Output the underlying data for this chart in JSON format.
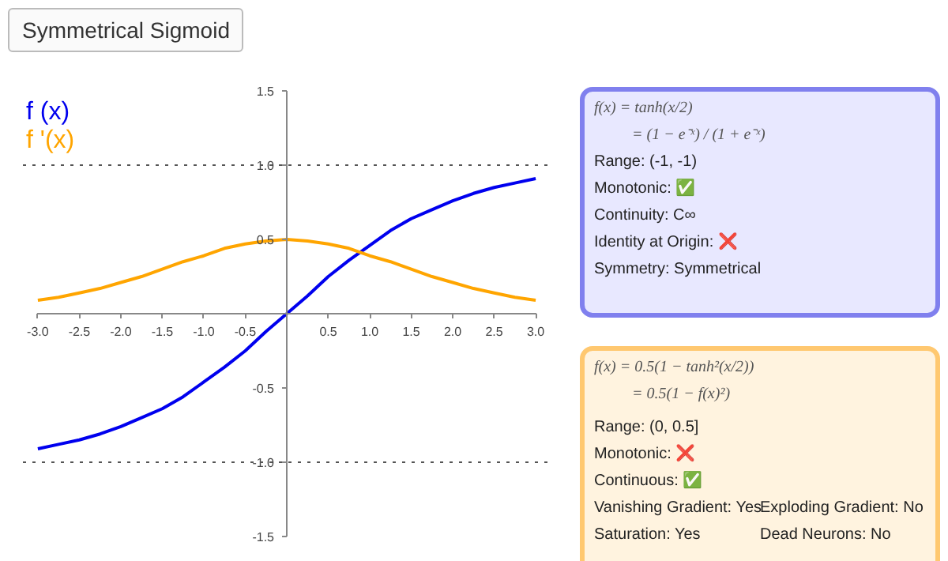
{
  "chart_data": [
    {
      "type": "line",
      "title": "Symmetrical Sigmoid",
      "x": [
        -3,
        -2.75,
        -2.5,
        -2.25,
        -2,
        -1.75,
        -1.5,
        -1.25,
        -1,
        -0.75,
        -0.5,
        -0.25,
        0,
        0.25,
        0.5,
        0.75,
        1,
        1.25,
        1.5,
        1.75,
        2,
        2.25,
        2.5,
        2.75,
        3
      ],
      "series": [
        {
          "name": "f (x)",
          "color": "#0000ee",
          "values": [
            -0.91,
            -0.88,
            -0.85,
            -0.81,
            -0.76,
            -0.7,
            -0.64,
            -0.56,
            -0.46,
            -0.36,
            -0.25,
            -0.12,
            0,
            0.12,
            0.25,
            0.36,
            0.46,
            0.56,
            0.64,
            0.7,
            0.76,
            0.81,
            0.85,
            0.88,
            0.91
          ]
        },
        {
          "name": "f '(x)",
          "color": "#ffa500",
          "values": [
            0.09,
            0.11,
            0.14,
            0.17,
            0.21,
            0.25,
            0.3,
            0.35,
            0.39,
            0.44,
            0.47,
            0.49,
            0.5,
            0.49,
            0.47,
            0.44,
            0.39,
            0.35,
            0.3,
            0.25,
            0.21,
            0.17,
            0.14,
            0.11,
            0.09
          ]
        }
      ],
      "xlim": [
        -3,
        3
      ],
      "ylim": [
        -1.5,
        1.5
      ],
      "xticks": [
        {
          "value": -3,
          "label": "-3.0"
        },
        {
          "value": -2.5,
          "label": "-2.5"
        },
        {
          "value": -2,
          "label": "-2.0"
        },
        {
          "value": -1.5,
          "label": "-1.5"
        },
        {
          "value": -1,
          "label": "-1.0"
        },
        {
          "value": -0.5,
          "label": "-0.5"
        },
        {
          "value": 0.5,
          "label": "0.5"
        },
        {
          "value": 1,
          "label": "1.0"
        },
        {
          "value": 1.5,
          "label": "1.5"
        },
        {
          "value": 2,
          "label": "2.0"
        },
        {
          "value": 2.5,
          "label": "2.5"
        },
        {
          "value": 3,
          "label": "3.0"
        }
      ],
      "yticks": [
        {
          "value": -1.5,
          "label": "-1.5"
        },
        {
          "value": -1,
          "label": "-1.0"
        },
        {
          "value": -0.5,
          "label": "-0.5"
        },
        {
          "value": 0.5,
          "label": "0.5"
        },
        {
          "value": 1,
          "label": "1.0"
        },
        {
          "value": 1.5,
          "label": "1.5"
        }
      ],
      "ref_lines": [
        {
          "axis": "y",
          "value": 1,
          "line_style": "dotted",
          "color": "#555555"
        },
        {
          "axis": "y",
          "value": -1,
          "line_style": "dotted",
          "color": "#555555"
        }
      ],
      "grid": false,
      "legend": "top left"
    },
    {
      "type": "other",
      "annotations": [
        "f(x) = tanh(x/2)",
        "= (1 − e⁻ˣ) / (1 + e⁻ˣ)",
        "Range: (-1, -1)",
        "Monotonic: ✅",
        "Continuity: C∞",
        "Identity at Origin: ❌",
        "Symmetry: Symmetrical"
      ]
    },
    {
      "type": "other",
      "annotations": [
        "f(x) = 0.5(1 − tanh²(x/2))",
        "= 0.5(1 − f(x)²)",
        "Range: (0, 0.5]",
        "Monotonic: ❌",
        "Continuous: ✅",
        "Vanishing Gradient: Yes",
        "Exploding Gradient: No",
        "Saturation: Yes",
        "Dead Neurons: No"
      ]
    }
  ]
}
